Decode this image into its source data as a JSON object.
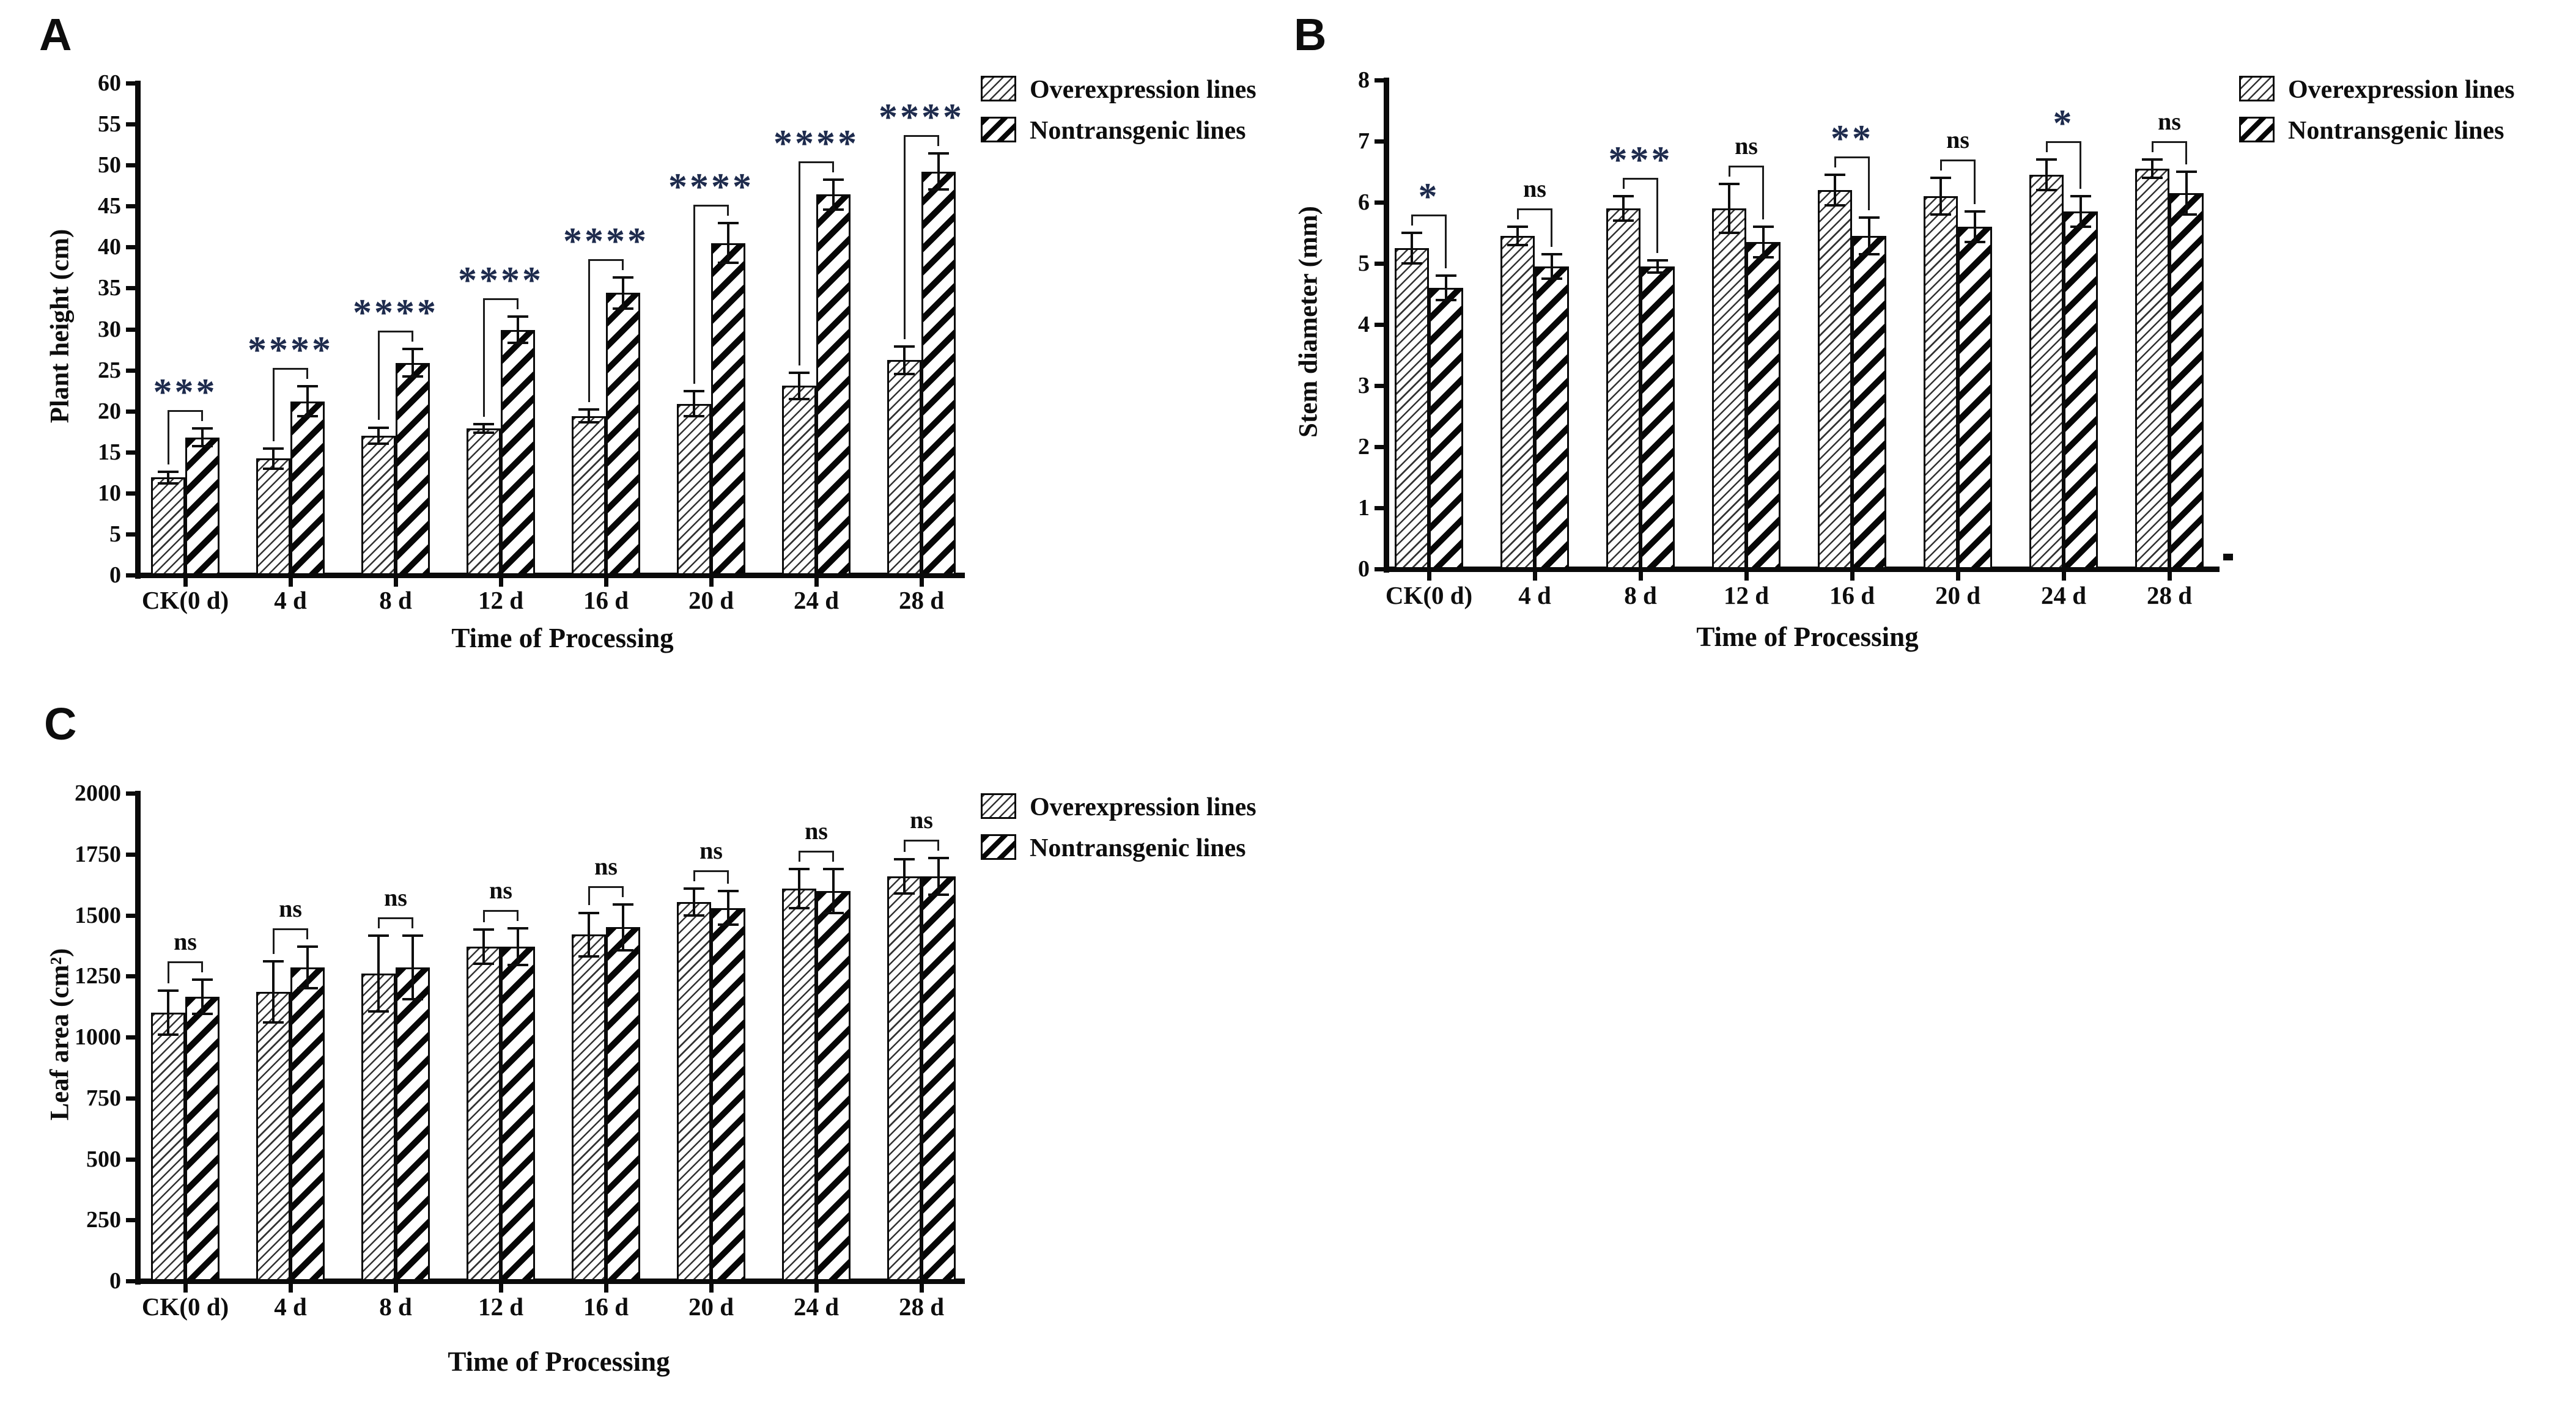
{
  "figure": {
    "legend_labels": [
      "Overexpression lines",
      "Nontransgenic lines"
    ],
    "colors": {
      "ink": "#0d0d0d",
      "asterisk": "#1e2b4d",
      "bar_fill": "#ffffff"
    }
  },
  "chart_data": [
    {
      "type": "bar",
      "panel_label": "A",
      "title": "",
      "xlabel": "Time of Processing",
      "ylabel": "Plant height (cm)",
      "ylim": [
        0,
        60
      ],
      "ytick_step": 5,
      "grid": false,
      "legend_position": "top-right-outside",
      "legend": [
        "Overexpression lines",
        "Nontransgenic lines"
      ],
      "categories": [
        "CK(0 d)",
        "4 d",
        "8 d",
        "12 d",
        "16 d",
        "20 d",
        "24 d",
        "28 d"
      ],
      "series": [
        {
          "name": "Overexpression lines",
          "values": [
            11.9,
            14.2,
            17.0,
            17.9,
            19.4,
            20.9,
            23.1,
            26.2
          ],
          "errors": [
            0.7,
            1.2,
            1.0,
            0.5,
            0.8,
            1.5,
            1.6,
            1.7
          ]
        },
        {
          "name": "Nontransgenic lines",
          "values": [
            16.8,
            21.2,
            25.9,
            29.9,
            34.4,
            40.5,
            46.4,
            49.2
          ],
          "errors": [
            1.1,
            1.8,
            1.7,
            1.6,
            1.9,
            2.4,
            1.8,
            2.2
          ]
        }
      ],
      "significance": [
        "***",
        "****",
        "****",
        "****",
        "****",
        "****",
        "****",
        "****"
      ]
    },
    {
      "type": "bar",
      "panel_label": "B",
      "title": "",
      "xlabel": "Time of Processing",
      "ylabel": "Stem diameter (mm)",
      "ylim": [
        0,
        8
      ],
      "ytick_step": 1,
      "grid": false,
      "legend_position": "top-right-outside",
      "legend": [
        "Overexpression lines",
        "Nontransgenic lines"
      ],
      "categories": [
        "CK(0 d)",
        "4 d",
        "8 d",
        "12 d",
        "16 d",
        "20 d",
        "24 d",
        "28 d"
      ],
      "series": [
        {
          "name": "Overexpression lines",
          "values": [
            5.25,
            5.45,
            5.9,
            5.9,
            6.2,
            6.1,
            6.45,
            6.55
          ],
          "errors": [
            0.25,
            0.15,
            0.2,
            0.4,
            0.25,
            0.3,
            0.25,
            0.15
          ]
        },
        {
          "name": "Nontransgenic lines",
          "values": [
            4.6,
            4.95,
            4.95,
            5.35,
            5.45,
            5.6,
            5.85,
            6.15
          ],
          "errors": [
            0.2,
            0.2,
            0.1,
            0.25,
            0.3,
            0.25,
            0.25,
            0.35
          ]
        }
      ],
      "significance": [
        "*",
        "ns",
        "***",
        "ns",
        "**",
        "ns",
        "*",
        "ns"
      ]
    },
    {
      "type": "bar",
      "panel_label": "C",
      "title": "",
      "xlabel": "Time of Processing",
      "ylabel": "Leaf area (cm²)",
      "ylim": [
        0,
        2000
      ],
      "ytick_step": 250,
      "grid": false,
      "legend_position": "top-right-outside",
      "legend": [
        "Overexpression lines",
        "Nontransgenic lines"
      ],
      "categories": [
        "CK(0 d)",
        "4 d",
        "8 d",
        "12 d",
        "16 d",
        "20 d",
        "24 d",
        "28 d"
      ],
      "series": [
        {
          "name": "Overexpression lines",
          "values": [
            1100,
            1185,
            1260,
            1370,
            1420,
            1555,
            1610,
            1660
          ],
          "errors": [
            90,
            125,
            155,
            70,
            90,
            55,
            80,
            70
          ]
        },
        {
          "name": "Nontransgenic lines",
          "values": [
            1165,
            1285,
            1285,
            1370,
            1450,
            1530,
            1600,
            1660
          ],
          "errors": [
            70,
            85,
            130,
            75,
            95,
            70,
            90,
            75
          ]
        }
      ],
      "significance": [
        "ns",
        "ns",
        "ns",
        "ns",
        "ns",
        "ns",
        "ns",
        "ns"
      ]
    }
  ]
}
